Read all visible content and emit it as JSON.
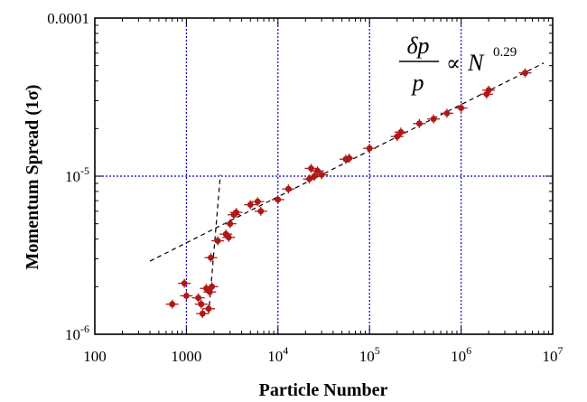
{
  "chart_data": {
    "type": "scatter",
    "xlabel": "Particle Number",
    "ylabel": "Momentum Spread (1σ)",
    "x_scale": "log",
    "y_scale": "log",
    "xlim": [
      100,
      10000000
    ],
    "ylim": [
      1e-06,
      0.0001
    ],
    "grid": true,
    "x_ticks": [
      {
        "value": 100,
        "base": "100",
        "exp": ""
      },
      {
        "value": 1000,
        "base": "1000",
        "exp": ""
      },
      {
        "value": 10000,
        "base": "10",
        "exp": "4"
      },
      {
        "value": 100000,
        "base": "10",
        "exp": "5"
      },
      {
        "value": 1000000,
        "base": "10",
        "exp": "6"
      },
      {
        "value": 10000000,
        "base": "10",
        "exp": "7"
      }
    ],
    "y_ticks": [
      {
        "value": 1e-06,
        "base": "10",
        "exp": "-6"
      },
      {
        "value": 1e-05,
        "base": "10",
        "exp": "-5"
      },
      {
        "value": 0.0001,
        "base": "0.0001",
        "exp": ""
      }
    ],
    "annotation": {
      "numerator": "δp",
      "denominator": "p",
      "relation": "∝",
      "variable": "N",
      "exponent": "0.29"
    },
    "colors": {
      "marker": "#b01818",
      "grid": "#0000cc",
      "fit": "#000000"
    },
    "points": [
      {
        "x": 700,
        "y": 1.55e-06
      },
      {
        "x": 950,
        "y": 2.1e-06
      },
      {
        "x": 1000,
        "y": 1.75e-06
      },
      {
        "x": 1350,
        "y": 1.7e-06
      },
      {
        "x": 1450,
        "y": 1.55e-06
      },
      {
        "x": 1500,
        "y": 1.35e-06
      },
      {
        "x": 1650,
        "y": 1.95e-06
      },
      {
        "x": 1750,
        "y": 1.45e-06
      },
      {
        "x": 1800,
        "y": 1.85e-06
      },
      {
        "x": 1900,
        "y": 2e-06
      },
      {
        "x": 1850,
        "y": 3.05e-06
      },
      {
        "x": 2200,
        "y": 3.9e-06
      },
      {
        "x": 2700,
        "y": 4.3e-06
      },
      {
        "x": 2900,
        "y": 4.1e-06
      },
      {
        "x": 3000,
        "y": 5e-06
      },
      {
        "x": 3300,
        "y": 5.7e-06
      },
      {
        "x": 3500,
        "y": 5.9e-06
      },
      {
        "x": 5000,
        "y": 6.6e-06
      },
      {
        "x": 6000,
        "y": 6.9e-06
      },
      {
        "x": 6500,
        "y": 6e-06
      },
      {
        "x": 10000,
        "y": 7.1e-06
      },
      {
        "x": 13000,
        "y": 8.3e-06
      },
      {
        "x": 22000,
        "y": 9.6e-06
      },
      {
        "x": 23000,
        "y": 1.12e-05
      },
      {
        "x": 25000,
        "y": 1e-05
      },
      {
        "x": 27000,
        "y": 1.08e-05
      },
      {
        "x": 30000,
        "y": 1.02e-05
      },
      {
        "x": 55000,
        "y": 1.28e-05
      },
      {
        "x": 60000,
        "y": 1.3e-05
      },
      {
        "x": 100000,
        "y": 1.5e-05
      },
      {
        "x": 200000,
        "y": 1.78e-05
      },
      {
        "x": 220000,
        "y": 1.9e-05
      },
      {
        "x": 350000,
        "y": 2.15e-05
      },
      {
        "x": 500000,
        "y": 2.3e-05
      },
      {
        "x": 700000,
        "y": 2.5e-05
      },
      {
        "x": 1000000,
        "y": 2.7e-05
      },
      {
        "x": 1900000,
        "y": 3.3e-05
      },
      {
        "x": 2000000,
        "y": 3.5e-05
      },
      {
        "x": 5000000,
        "y": 4.5e-05
      }
    ],
    "fit_lines": [
      {
        "style": "dashed",
        "points": [
          [
            400,
            2.9e-06
          ],
          [
            8000000,
            5.2e-05
          ]
        ]
      },
      {
        "style": "dashed",
        "points": [
          [
            1750,
            1.35e-06
          ],
          [
            2350,
            1.02e-05
          ]
        ]
      }
    ]
  }
}
